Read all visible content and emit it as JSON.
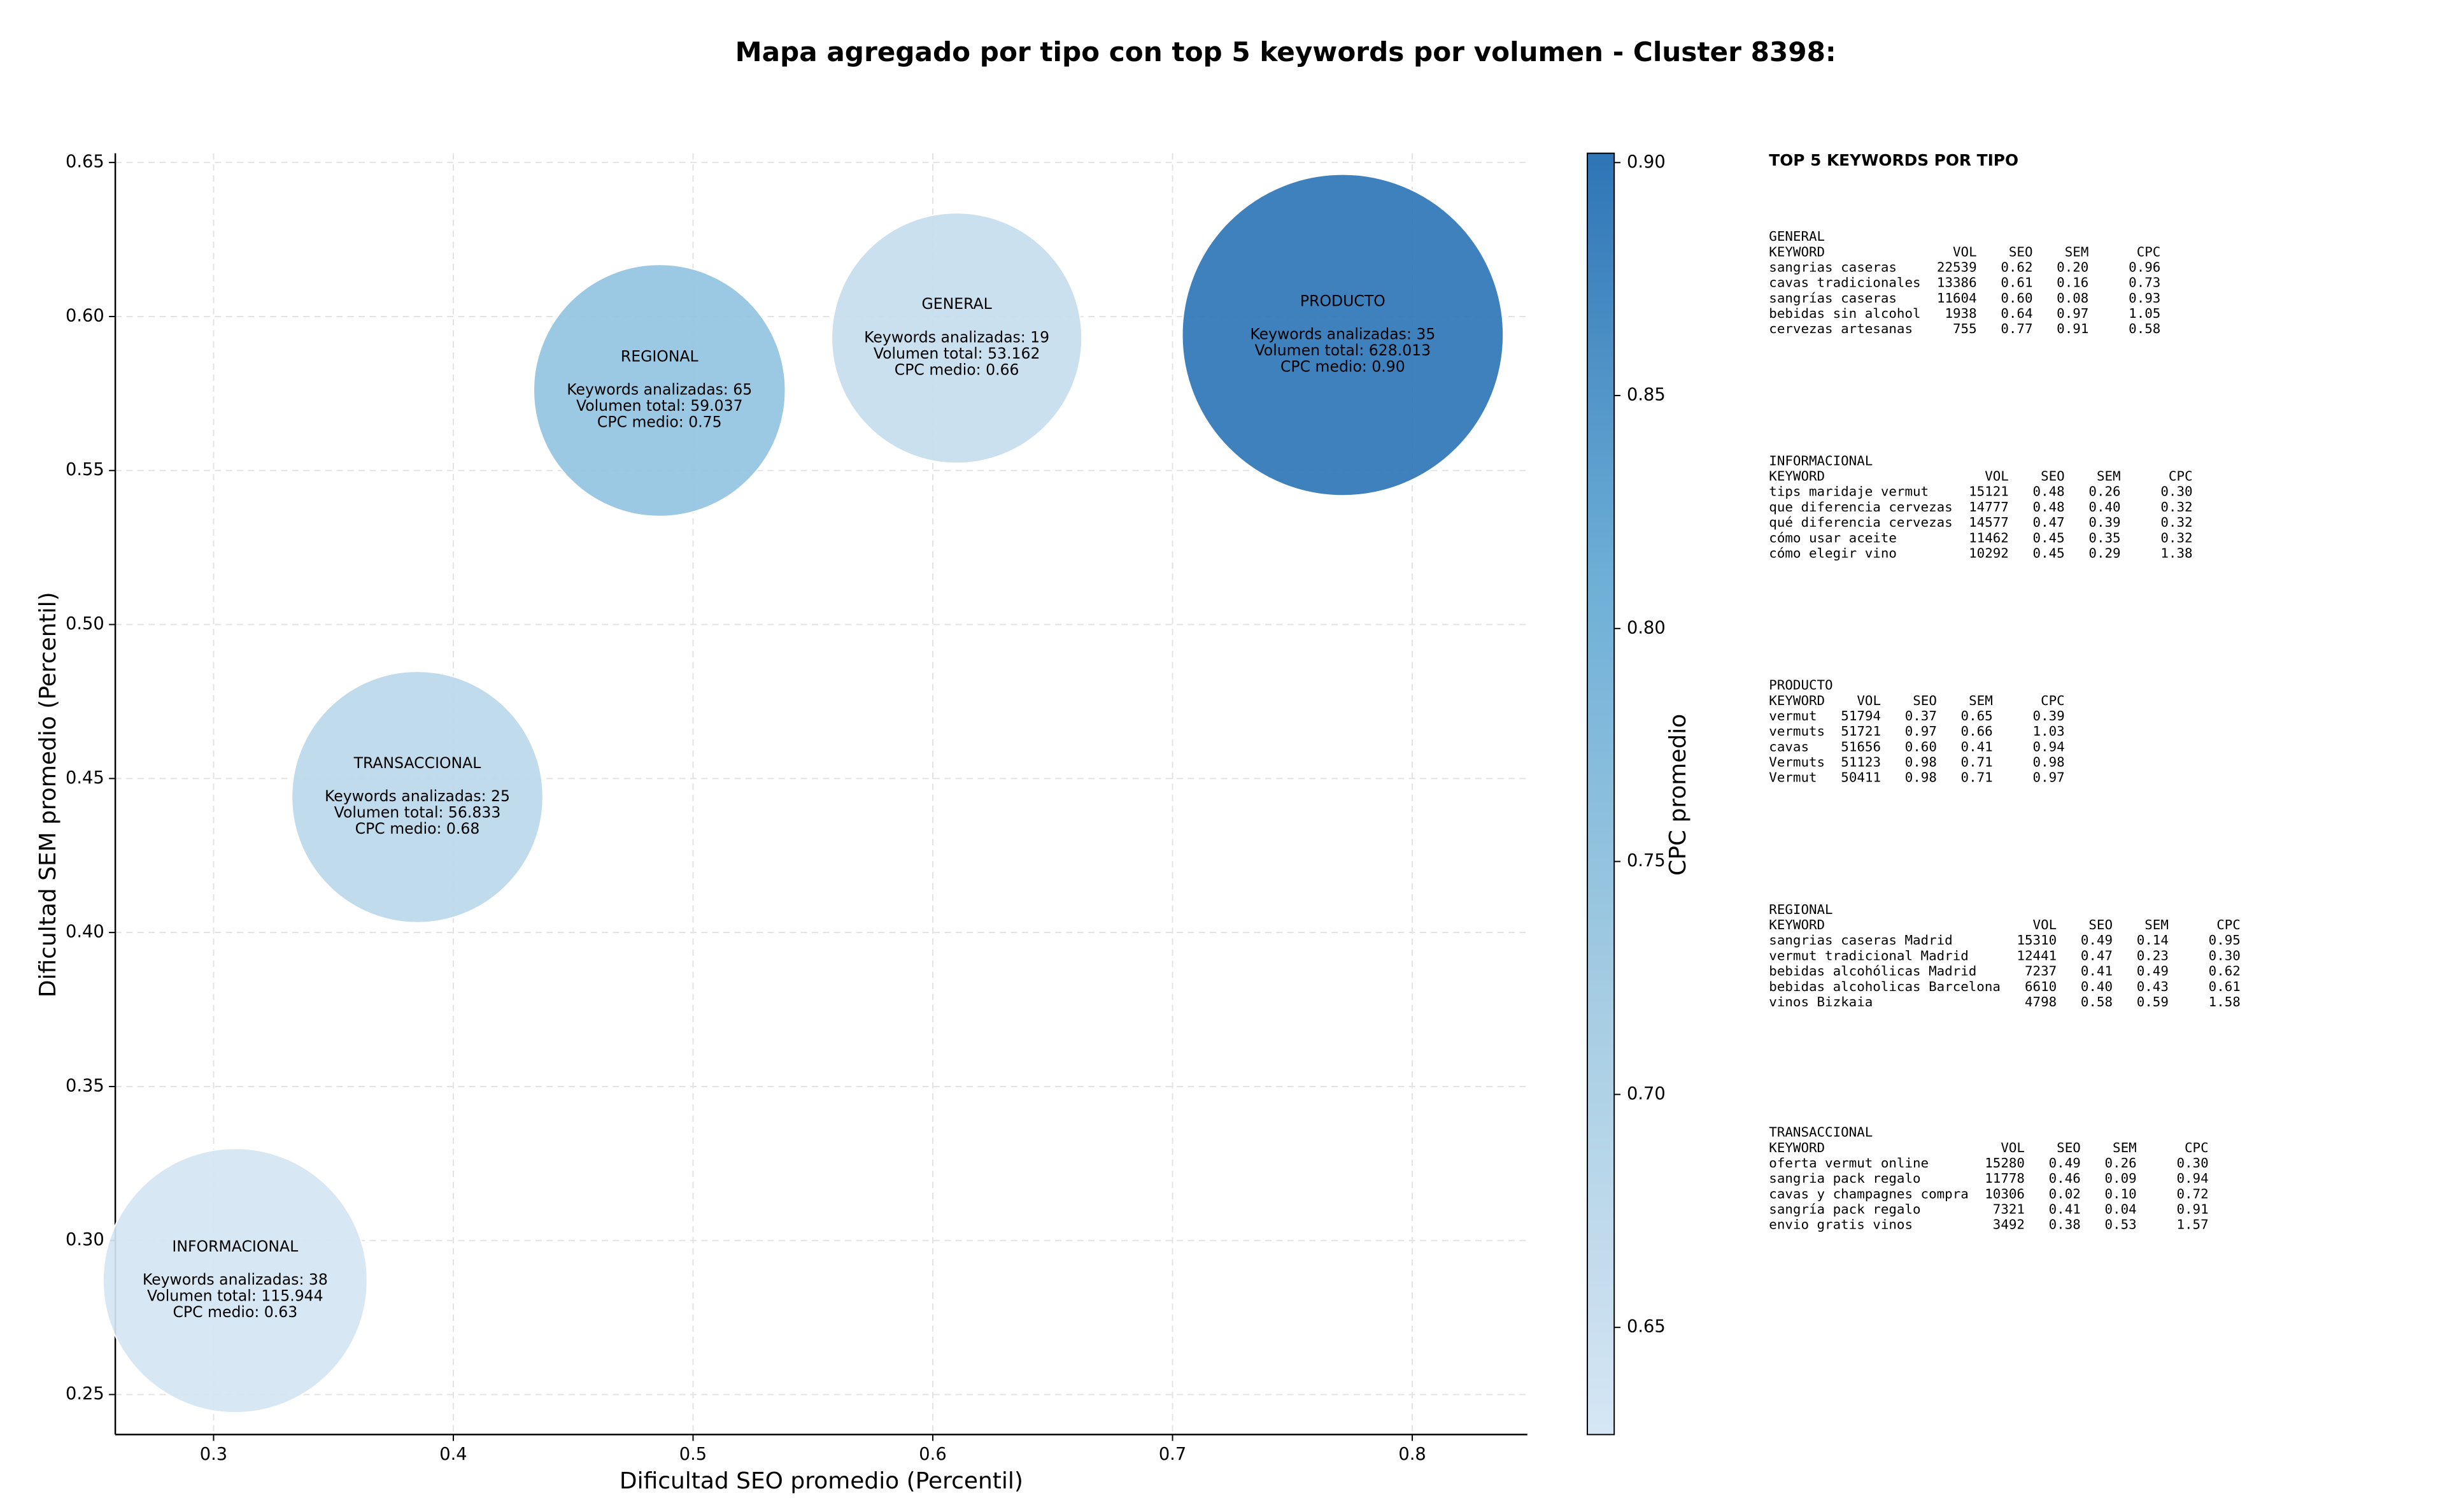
{
  "chart_data": {
    "type": "scatter",
    "title": "Mapa agregado por tipo con top 5 keywords por volumen - Cluster 8398:",
    "xlabel": "Dificultad SEO promedio (Percentil)",
    "ylabel": "Dificultad SEM promedio (Percentil)",
    "colorbar_label": "CPC promedio",
    "xlim": [
      0.259,
      0.848
    ],
    "xticks": [
      {
        "value": 0.3,
        "label": "0.3"
      },
      {
        "value": 0.4,
        "label": "0.4"
      },
      {
        "value": 0.5,
        "label": "0.5"
      },
      {
        "value": 0.6,
        "label": "0.6"
      },
      {
        "value": 0.7,
        "label": "0.7"
      },
      {
        "value": 0.8,
        "label": "0.8"
      }
    ],
    "ylim": [
      0.237,
      0.653
    ],
    "yticks": [
      0.25,
      {
        "value": 0.3,
        "label": "0.30"
      },
      0.35,
      {
        "value": 0.4,
        "label": "0.40"
      },
      0.45,
      {
        "value": 0.5,
        "label": "0.50"
      },
      0.55,
      {
        "value": 0.6,
        "label": "0.60"
      },
      0.65
    ],
    "clim": [
      0.627,
      0.902
    ],
    "cticks": [
      0.65,
      {
        "value": 0.7,
        "label": "0.70"
      },
      0.75,
      {
        "value": 0.8,
        "label": "0.80"
      },
      0.85,
      {
        "value": 0.9,
        "label": "0.90"
      }
    ],
    "colormap": [
      "#d6e6f4",
      "#a6cde3",
      "#6eafd7",
      "#2e75b6"
    ],
    "grid": true,
    "points": [
      {
        "label": "REGIONAL",
        "x": 0.486,
        "y": 0.576,
        "size": 59037,
        "color_value": 0.75,
        "notes": [
          "Keywords analizadas: 65",
          "Volumen total: 59.037",
          "CPC medio: 0.75"
        ]
      },
      {
        "label": "GENERAL",
        "x": 0.61,
        "y": 0.593,
        "size": 53162,
        "color_value": 0.66,
        "notes": [
          "Keywords analizadas: 19",
          "Volumen total: 53.162",
          "CPC medio: 0.66"
        ]
      },
      {
        "label": "PRODUCTO",
        "x": 0.771,
        "y": 0.594,
        "size": 628013,
        "color_value": 0.9,
        "notes": [
          "Keywords analizadas: 35",
          "Volumen total: 628.013",
          "CPC medio: 0.90"
        ]
      },
      {
        "label": "TRANSACCIONAL",
        "x": 0.385,
        "y": 0.444,
        "size": 56833,
        "color_value": 0.68,
        "notes": [
          "Keywords analizadas: 25",
          "Volumen total: 56.833",
          "CPC medio: 0.68"
        ]
      },
      {
        "label": "INFORMACIONAL",
        "x": 0.309,
        "y": 0.287,
        "size": 115944,
        "color_value": 0.63,
        "notes": [
          "Keywords analizadas: 38",
          "Volumen total: 115.944",
          "CPC medio: 0.63"
        ]
      }
    ]
  },
  "panel": {
    "title": "TOP 5 KEYWORDS POR TIPO",
    "sections": [
      {
        "title": "GENERAL",
        "columns": [
          "KEYWORD",
          "VOL",
          "SEO",
          "SEM",
          "CPC"
        ],
        "rows": [
          [
            "sangrias caseras",
            "22539",
            "0.62",
            "0.20",
            "0.96"
          ],
          [
            "cavas tradicionales",
            "13386",
            "0.61",
            "0.16",
            "0.73"
          ],
          [
            "sangrías caseras",
            "11604",
            "0.60",
            "0.08",
            "0.93"
          ],
          [
            "bebidas sin alcohol",
            "1938",
            "0.64",
            "0.97",
            "1.05"
          ],
          [
            "cervezas artesanas",
            "755",
            "0.77",
            "0.91",
            "0.58"
          ]
        ]
      },
      {
        "title": "INFORMACIONAL",
        "columns": [
          "KEYWORD",
          "VOL",
          "SEO",
          "SEM",
          "CPC"
        ],
        "rows": [
          [
            "tips maridaje vermut",
            "15121",
            "0.48",
            "0.26",
            "0.30"
          ],
          [
            "que diferencia cervezas",
            "14777",
            "0.48",
            "0.40",
            "0.32"
          ],
          [
            "qué diferencia cervezas",
            "14577",
            "0.47",
            "0.39",
            "0.32"
          ],
          [
            "cómo usar aceite",
            "11462",
            "0.45",
            "0.35",
            "0.32"
          ],
          [
            "cómo elegir vino",
            "10292",
            "0.45",
            "0.29",
            "1.38"
          ]
        ]
      },
      {
        "title": "PRODUCTO",
        "columns": [
          "KEYWORD",
          "VOL",
          "SEO",
          "SEM",
          "CPC"
        ],
        "rows": [
          [
            "vermut",
            "51794",
            "0.37",
            "0.65",
            "0.39"
          ],
          [
            "vermuts",
            "51721",
            "0.97",
            "0.66",
            "1.03"
          ],
          [
            "cavas",
            "51656",
            "0.60",
            "0.41",
            "0.94"
          ],
          [
            "Vermuts",
            "51123",
            "0.98",
            "0.71",
            "0.98"
          ],
          [
            "Vermut",
            "50411",
            "0.98",
            "0.71",
            "0.97"
          ]
        ]
      },
      {
        "title": "REGIONAL",
        "columns": [
          "KEYWORD",
          "VOL",
          "SEO",
          "SEM",
          "CPC"
        ],
        "rows": [
          [
            "sangrias caseras Madrid",
            "15310",
            "0.49",
            "0.14",
            "0.95"
          ],
          [
            "vermut tradicional Madrid",
            "12441",
            "0.47",
            "0.23",
            "0.30"
          ],
          [
            "bebidas alcohólicas Madrid",
            "7237",
            "0.41",
            "0.49",
            "0.62"
          ],
          [
            "bebidas alcoholicas Barcelona",
            "6610",
            "0.40",
            "0.43",
            "0.61"
          ],
          [
            "vinos Bizkaia",
            "4798",
            "0.58",
            "0.59",
            "1.58"
          ]
        ]
      },
      {
        "title": "TRANSACCIONAL",
        "columns": [
          "KEYWORD",
          "VOL",
          "SEO",
          "SEM",
          "CPC"
        ],
        "rows": [
          [
            "oferta vermut online",
            "15280",
            "0.49",
            "0.26",
            "0.30"
          ],
          [
            "sangria pack regalo",
            "11778",
            "0.46",
            "0.09",
            "0.94"
          ],
          [
            "cavas y champagnes compra",
            "10306",
            "0.02",
            "0.10",
            "0.72"
          ],
          [
            "sangría pack regalo",
            "7321",
            "0.41",
            "0.04",
            "0.91"
          ],
          [
            "envio gratis vinos",
            "3492",
            "0.38",
            "0.53",
            "1.57"
          ]
        ]
      }
    ]
  }
}
